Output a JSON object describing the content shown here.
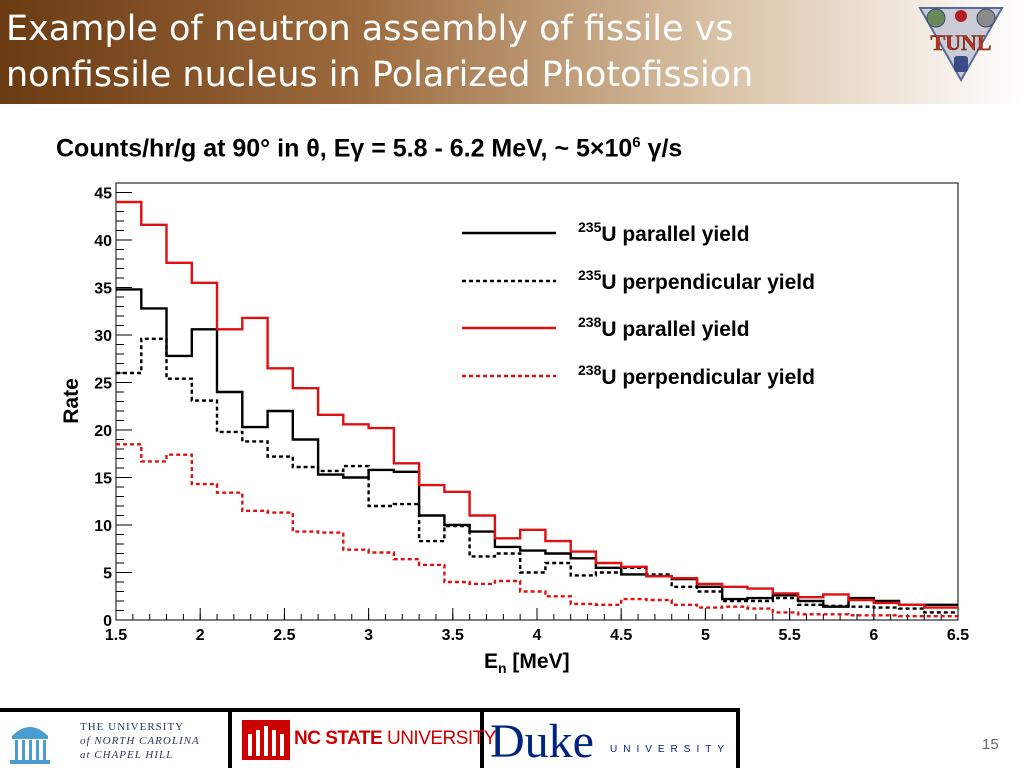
{
  "header": {
    "title_line1": "Example of neutron assembly of fissile vs",
    "title_line2": "nonfissile nucleus in Polarized Photofission",
    "logo_text": "TUNL"
  },
  "chart_data": {
    "type": "line",
    "step": true,
    "title_parts": {
      "a": "Counts/hr/g at 90° in θ, Eγ = 5.8 - 6.2 MeV, ~ 5×10",
      "b": "6",
      "c": " γ/s"
    },
    "xlabel_main": "E",
    "xlabel_sub": "n",
    "xlabel_rest": " [MeV]",
    "ylabel": "Rate",
    "xlim": [
      1.5,
      6.5
    ],
    "ylim": [
      0,
      46
    ],
    "xticks": [
      1.5,
      2,
      2.5,
      3,
      3.5,
      4,
      4.5,
      5,
      5.5,
      6,
      6.5
    ],
    "xtick_labels": [
      "1.5",
      "2",
      "2.5",
      "3",
      "3.5",
      "4",
      "4.5",
      "5",
      "5.5",
      "6",
      "6.5"
    ],
    "yticks": [
      0,
      5,
      10,
      15,
      20,
      25,
      30,
      35,
      40,
      45
    ],
    "ytick_labels": [
      "0",
      "5",
      "10",
      "15",
      "20",
      "25",
      "30",
      "35",
      "40",
      "45"
    ],
    "bin_edges": [
      1.5,
      1.65,
      1.8,
      1.95,
      2.1,
      2.25,
      2.4,
      2.55,
      2.7,
      2.85,
      3.0,
      3.15,
      3.3,
      3.45,
      3.6,
      3.75,
      3.9,
      4.05,
      4.2,
      4.35,
      4.5,
      4.65,
      4.8,
      4.95,
      5.1,
      5.25,
      5.4,
      5.55,
      5.7,
      5.85,
      6.0,
      6.15,
      6.3,
      6.5
    ],
    "legend_position": "top-right",
    "series": [
      {
        "name_sup": "235",
        "name_rest": "U parallel yield",
        "color": "#000000",
        "dash": "solid",
        "values": [
          34.8,
          32.8,
          27.8,
          30.6,
          24.0,
          20.3,
          22.0,
          19.0,
          15.3,
          15.0,
          15.8,
          15.6,
          11.0,
          10.0,
          9.3,
          7.7,
          7.3,
          7.0,
          6.5,
          5.5,
          4.8,
          4.6,
          4.3,
          3.5,
          2.2,
          2.3,
          2.6,
          2.0,
          1.4,
          2.3,
          2.0,
          1.6,
          1.6
        ]
      },
      {
        "name_sup": "235",
        "name_rest": "U perpendicular yield",
        "color": "#000000",
        "dash": "dotted",
        "values": [
          26.0,
          29.6,
          25.4,
          23.1,
          19.8,
          18.8,
          17.2,
          16.1,
          15.7,
          16.2,
          12.0,
          12.2,
          8.3,
          9.9,
          6.7,
          7.0,
          5.0,
          6.0,
          4.7,
          5.0,
          5.5,
          4.8,
          3.5,
          3.0,
          2.0,
          2.0,
          2.3,
          1.6,
          1.5,
          1.4,
          1.3,
          1.2,
          0.8
        ]
      },
      {
        "name_sup": "238",
        "name_rest": "U parallel yield",
        "color": "#dd1111",
        "dash": "solid",
        "values": [
          44.0,
          41.6,
          37.6,
          35.5,
          30.6,
          31.8,
          26.5,
          24.4,
          21.6,
          20.6,
          20.2,
          16.5,
          14.2,
          13.5,
          11.0,
          8.6,
          9.5,
          8.3,
          7.2,
          6.0,
          5.6,
          4.6,
          4.4,
          3.8,
          3.5,
          3.3,
          2.8,
          2.4,
          2.7,
          2.1,
          1.8,
          1.6,
          1.3
        ]
      },
      {
        "name_sup": "238",
        "name_rest": "U perpendicular yield",
        "color": "#dd1111",
        "dash": "dotted",
        "values": [
          18.5,
          16.7,
          17.4,
          14.3,
          13.4,
          11.5,
          11.3,
          9.3,
          9.2,
          7.4,
          7.1,
          6.4,
          5.8,
          4.0,
          3.8,
          4.1,
          3.0,
          2.5,
          1.7,
          1.6,
          2.2,
          2.1,
          1.6,
          1.3,
          1.4,
          1.2,
          0.8,
          0.6,
          0.6,
          0.5,
          0.5,
          0.4,
          0.4
        ]
      }
    ]
  },
  "footer": {
    "unc_line1": "THE UNIVERSITY",
    "unc_line2": "of NORTH CAROLINA",
    "unc_line3": "at CHAPEL HILL",
    "ncsu_bold": "NC STATE",
    "ncsu_rest": " UNIVERSITY",
    "duke_word": "Duke",
    "duke_univ": "UNIVERSITY",
    "page_number": "15"
  }
}
